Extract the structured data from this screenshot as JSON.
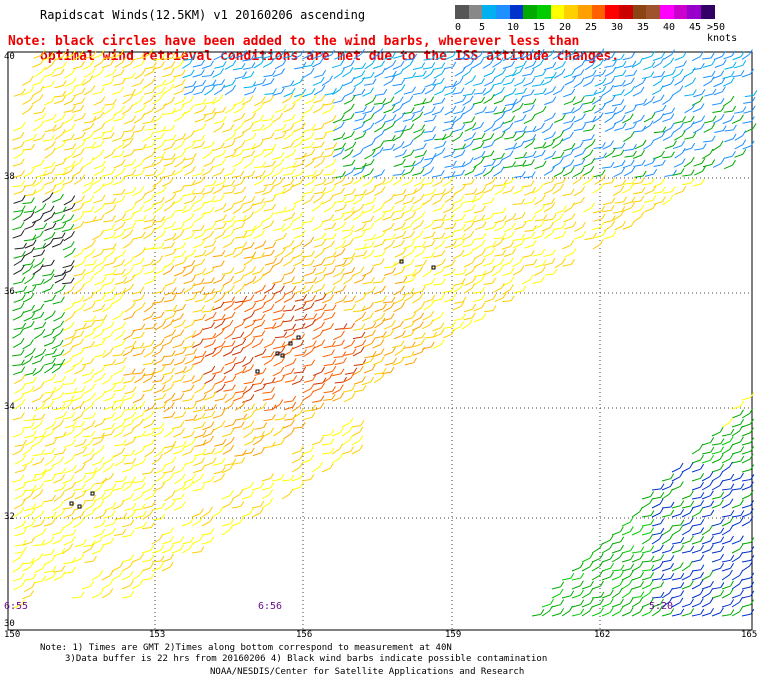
{
  "header": {
    "title": "Rapidscat Winds(12.5KM) v1 20160206 ascending"
  },
  "legend": {
    "colors": [
      "#555555",
      "#888888",
      "#00b0f0",
      "#1e90ff",
      "#0033cc",
      "#00aa00",
      "#00cc00",
      "#ffff00",
      "#ffd000",
      "#ffa000",
      "#ff6000",
      "#ff0000",
      "#cc0000",
      "#8b4513",
      "#a0522d",
      "#ff00ff",
      "#cc00cc",
      "#9900cc",
      "#330066"
    ],
    "labels": [
      "0",
      "5",
      "10",
      "15",
      "20",
      "25",
      "30",
      "35",
      "40",
      "45",
      ">50 knots"
    ]
  },
  "note": {
    "line1": "Note: black circles have been added to the wind barbs, wherever less than",
    "line2": "optimal wind retrieval conditions are met due to the ISS attitude changes."
  },
  "map": {
    "lat_labels": [
      "40",
      "38",
      "36",
      "34",
      "32",
      "30"
    ],
    "lon_labels": [
      "150",
      "153",
      "156",
      "159",
      "162",
      "165"
    ],
    "time_labels": [
      "6:55",
      "6:56",
      "5:20"
    ]
  },
  "footer": {
    "line1": "Note: 1) Times are GMT 2)Times along bottom correspond to measurement at 40N",
    "line2": "3)Data buffer is 22 hrs from 20160206 4) Black wind barbs indicate possible contamination",
    "line3": "NOAA/NESDIS/Center for Satellite Applications and Research"
  }
}
